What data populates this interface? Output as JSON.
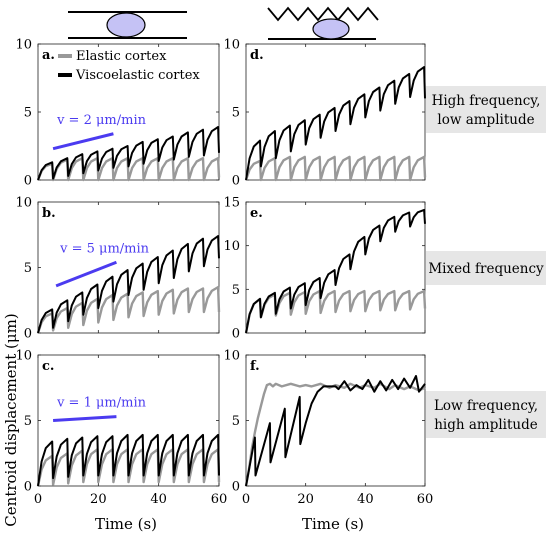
{
  "colors": {
    "elastic": "#999999",
    "viscoelastic": "#000000",
    "velocity": "#4b3bf0",
    "cell": "#c5c2f5",
    "band": "#e6e6e6"
  },
  "ylabel": "Centroid displacement (μm)",
  "xlabel": "Time (s)",
  "legend": {
    "elastic": "Elastic cortex",
    "viscoelastic": "Viscoelastic cortex"
  },
  "chart_data": [
    {
      "panel": "a.",
      "type": "line",
      "xlim": [
        0,
        60
      ],
      "ylim": [
        0,
        10
      ],
      "xticks": [
        0,
        20,
        40,
        60
      ],
      "yticks": [
        0,
        5,
        10
      ],
      "show_xticklabels": false,
      "legend_placement": "top-left",
      "velocity_label": "v = 2 μm/min",
      "velocity_line": {
        "x": [
          5,
          25
        ],
        "y": [
          2.3,
          3.4
        ]
      },
      "series": [
        {
          "name": "Elastic cortex",
          "key": "elastic",
          "baselines": [
            0,
            0,
            0,
            0,
            0,
            0,
            0,
            0,
            0,
            0,
            0,
            0
          ],
          "peaks": [
            1.2,
            1.5,
            1.6,
            1.6,
            1.6,
            1.6,
            1.6,
            1.6,
            1.6,
            1.6,
            1.6,
            1.6
          ],
          "end": 0.2
        },
        {
          "name": "Viscoelastic cortex",
          "key": "viscoelastic",
          "baselines": [
            0,
            0.1,
            0.3,
            0.5,
            0.7,
            0.9,
            1.0,
            1.2,
            1.4,
            1.5,
            1.7,
            1.8
          ],
          "peaks": [
            1.3,
            1.6,
            1.9,
            2.1,
            2.3,
            2.5,
            2.8,
            3.0,
            3.2,
            3.5,
            3.7,
            3.9
          ],
          "end": 2.0
        }
      ]
    },
    {
      "panel": "b.",
      "type": "line",
      "xlim": [
        0,
        60
      ],
      "ylim": [
        0,
        10
      ],
      "xticks": [
        0,
        20,
        40,
        60
      ],
      "yticks": [
        0,
        5,
        10
      ],
      "show_xticklabels": false,
      "velocity_label": "v = 5 μm/min",
      "velocity_line": {
        "x": [
          6,
          26
        ],
        "y": [
          3.6,
          5.4
        ]
      },
      "series": [
        {
          "name": "Elastic cortex",
          "key": "elastic",
          "baselines": [
            0,
            0.2,
            0.4,
            0.6,
            0.8,
            1.0,
            1.2,
            1.3,
            1.4,
            1.5,
            1.6,
            1.6
          ],
          "peaks": [
            1.5,
            1.9,
            2.3,
            2.6,
            2.9,
            3.0,
            3.1,
            3.2,
            3.3,
            3.4,
            3.4,
            3.5
          ],
          "end": 1.6
        },
        {
          "name": "Viscoelastic cortex",
          "key": "viscoelastic",
          "baselines": [
            0,
            0.4,
            0.9,
            1.4,
            1.9,
            2.4,
            2.9,
            3.3,
            3.8,
            4.2,
            4.7,
            5.1
          ],
          "peaks": [
            1.8,
            2.5,
            3.1,
            3.7,
            4.3,
            4.8,
            5.3,
            5.8,
            6.3,
            6.8,
            7.2,
            7.4
          ],
          "end": 5.7
        }
      ]
    },
    {
      "panel": "c.",
      "type": "line",
      "xlim": [
        0,
        60
      ],
      "ylim": [
        0,
        10
      ],
      "xticks": [
        0,
        20,
        40,
        60
      ],
      "yticks": [
        0,
        5,
        10
      ],
      "show_xticklabels": true,
      "velocity_label": "v = 1 μm/min",
      "velocity_line": {
        "x": [
          5,
          26
        ],
        "y": [
          5.0,
          5.3
        ]
      },
      "series": [
        {
          "name": "Elastic cortex",
          "key": "elastic",
          "baselines": [
            0,
            0.1,
            0.2,
            0.3,
            0.3,
            0.3,
            0.3,
            0.3,
            0.3,
            0.3,
            0.3,
            0.3
          ],
          "peaks": [
            2.3,
            2.5,
            2.7,
            2.8,
            2.8,
            2.8,
            2.8,
            2.8,
            2.8,
            2.8,
            2.8,
            2.8
          ],
          "end": 0.3
        },
        {
          "name": "Viscoelastic cortex",
          "key": "viscoelastic",
          "baselines": [
            0,
            0.6,
            0.7,
            0.8,
            0.8,
            0.8,
            0.8,
            0.8,
            0.8,
            0.8,
            0.8,
            0.8
          ],
          "peaks": [
            3.4,
            3.6,
            3.7,
            3.8,
            3.8,
            3.9,
            3.9,
            3.9,
            3.9,
            3.9,
            3.9,
            3.9
          ],
          "end": 0.8
        }
      ]
    },
    {
      "panel": "d.",
      "type": "line",
      "xlim": [
        0,
        60
      ],
      "ylim": [
        0,
        10
      ],
      "xticks": [
        0,
        20,
        40,
        60
      ],
      "yticks": [
        0,
        5,
        10
      ],
      "show_xticklabels": false,
      "series": [
        {
          "name": "Elastic cortex",
          "key": "elastic",
          "baselines": [
            0,
            0,
            0,
            0,
            0,
            0,
            0,
            0,
            0,
            0,
            0,
            0
          ],
          "peaks": [
            1.4,
            1.6,
            1.7,
            1.7,
            1.7,
            1.7,
            1.7,
            1.7,
            1.7,
            1.7,
            1.7,
            1.7
          ],
          "end": 0.2
        },
        {
          "name": "Viscoelastic cortex",
          "key": "viscoelastic",
          "baselines": [
            0,
            1.0,
            1.6,
            2.1,
            2.6,
            3.1,
            3.6,
            4.1,
            4.6,
            5.1,
            5.6,
            6.1
          ],
          "peaks": [
            2.9,
            3.6,
            4.0,
            4.4,
            4.8,
            5.3,
            5.8,
            6.3,
            6.8,
            7.3,
            7.8,
            8.3
          ],
          "end": 6.0
        }
      ]
    },
    {
      "panel": "e.",
      "type": "line",
      "xlim": [
        0,
        60
      ],
      "ylim": [
        0,
        15
      ],
      "xticks": [
        0,
        20,
        40,
        60
      ],
      "yticks": [
        0,
        5,
        10,
        15
      ],
      "show_xticklabels": false,
      "series": [
        {
          "name": "Elastic cortex",
          "key": "elastic",
          "baselines": [
            0,
            1.8,
            2.0,
            2.1,
            2.2,
            2.3,
            2.4,
            2.5,
            2.5,
            2.6,
            2.6,
            2.7
          ],
          "peaks": [
            3.9,
            4.4,
            4.6,
            4.7,
            4.8,
            4.8,
            4.8,
            4.8,
            4.8,
            4.8,
            4.8,
            4.8
          ],
          "end": 2.8
        },
        {
          "name": "Viscoelastic cortex",
          "key": "viscoelastic",
          "baselines": [
            0,
            1.8,
            2.2,
            2.8,
            3.2,
            4.0,
            5.5,
            7.3,
            9.0,
            10.5,
            11.6,
            12.2
          ],
          "peaks": [
            3.9,
            4.6,
            5.2,
            5.7,
            6.3,
            7.2,
            9.0,
            11.0,
            12.3,
            13.3,
            13.8,
            14.1
          ],
          "end": 12.5
        }
      ]
    },
    {
      "panel": "f.",
      "type": "line",
      "xlim": [
        0,
        60
      ],
      "ylim": [
        0,
        10
      ],
      "xticks": [
        0,
        20,
        40,
        60
      ],
      "yticks": [
        0,
        5,
        10
      ],
      "show_xticklabels": true,
      "series": [
        {
          "name": "Elastic cortex",
          "key": "elastic",
          "points": [
            [
              0,
              0
            ],
            [
              1,
              1.3
            ],
            [
              2,
              2.9
            ],
            [
              3,
              4.1
            ],
            [
              4,
              5.2
            ],
            [
              5,
              6.1
            ],
            [
              6,
              7.0
            ],
            [
              7,
              7.7
            ],
            [
              8,
              7.8
            ],
            [
              9,
              7.6
            ],
            [
              10,
              7.8
            ],
            [
              12,
              7.6
            ],
            [
              15,
              7.8
            ],
            [
              18,
              7.6
            ],
            [
              20,
              7.7
            ],
            [
              22,
              7.6
            ],
            [
              25,
              7.8
            ],
            [
              28,
              7.5
            ],
            [
              30,
              7.7
            ],
            [
              33,
              7.5
            ],
            [
              35,
              7.8
            ],
            [
              38,
              7.5
            ],
            [
              40,
              7.7
            ],
            [
              43,
              7.5
            ],
            [
              45,
              7.8
            ],
            [
              48,
              7.4
            ],
            [
              50,
              7.7
            ],
            [
              53,
              7.4
            ],
            [
              55,
              7.6
            ],
            [
              58,
              7.3
            ],
            [
              60,
              7.5
            ]
          ]
        },
        {
          "name": "Viscoelastic cortex",
          "key": "viscoelastic",
          "points": [
            [
              0,
              0
            ],
            [
              3,
              3.7
            ],
            [
              3.2,
              0.8
            ],
            [
              8,
              4.8
            ],
            [
              8.2,
              1.8
            ],
            [
              13,
              5.9
            ],
            [
              13.2,
              2.2
            ],
            [
              18,
              6.8
            ],
            [
              18.2,
              3.2
            ],
            [
              20,
              4.8
            ],
            [
              22,
              6.3
            ],
            [
              24,
              7.2
            ],
            [
              26,
              7.6
            ],
            [
              30,
              7.6
            ],
            [
              31,
              7.4
            ],
            [
              33,
              8.0
            ],
            [
              35,
              7.3
            ],
            [
              37,
              7.7
            ],
            [
              39,
              7.4
            ],
            [
              41,
              8.1
            ],
            [
              43,
              7.2
            ],
            [
              45,
              8.0
            ],
            [
              47,
              7.3
            ],
            [
              49,
              8.1
            ],
            [
              51,
              7.4
            ],
            [
              53,
              8.2
            ],
            [
              55,
              7.5
            ],
            [
              57,
              8.4
            ],
            [
              58,
              7.2
            ],
            [
              60,
              7.8
            ]
          ]
        }
      ]
    }
  ],
  "row_labels": [
    {
      "lines": [
        "High frequency,",
        "low amplitude"
      ]
    },
    {
      "lines": [
        "Mixed frequency"
      ]
    },
    {
      "lines": [
        "Low frequency,",
        "high amplitude"
      ]
    }
  ]
}
